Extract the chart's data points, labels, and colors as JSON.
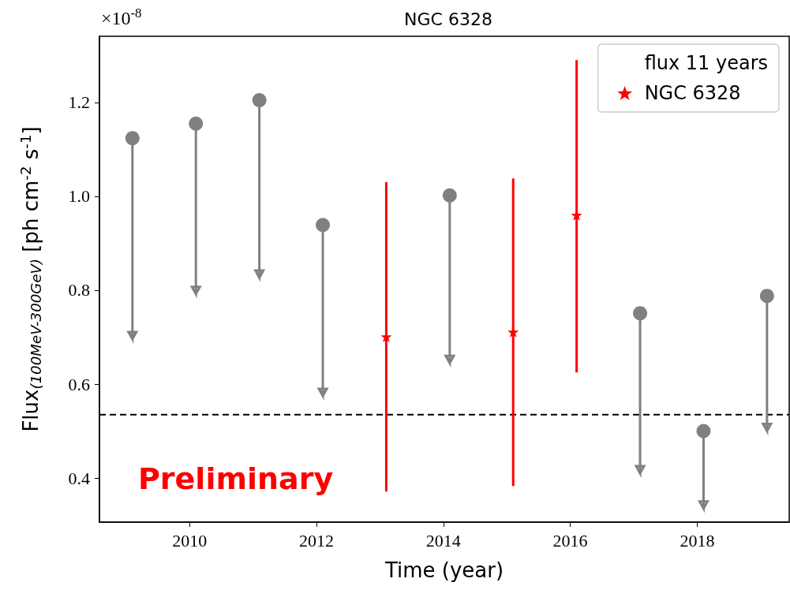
{
  "chart_data": {
    "type": "scatter",
    "title": "NGC 6328",
    "xlabel": "Time (year)",
    "ylabel": "Flux$_{(100MeV-300GeV)}$ [ph cm$^{-2}$ s$^{-1}$]",
    "annotations": [
      "×10$^{-8}$",
      "Preliminary"
    ],
    "series": [
      {
        "color": "#808080",
        "marker": "circle",
        "x": [
          2009.1,
          2010.1,
          2011.1,
          2012.1,
          2014.1,
          2017.1,
          2018.1,
          2019.1
        ],
        "values": [
          1.124,
          1.155,
          1.205,
          0.939,
          1.002,
          0.751,
          0.5,
          0.788
        ],
        "errors": [
          [
            0.696,
            1.124
          ],
          [
            0.792,
            1.155
          ],
          [
            0.827,
            1.205
          ],
          [
            0.575,
            0.939
          ],
          [
            0.645,
            1.002
          ],
          [
            0.41,
            0.751
          ],
          [
            0.335,
            0.5
          ],
          [
            0.5,
            0.788
          ]
        ]
      },
      {
        "name": "NGC 6328",
        "color": "#ff0000",
        "marker": "star",
        "x": [
          2013.1,
          2015.1,
          2016.1
        ],
        "values": [
          0.701,
          0.711,
          0.96
        ],
        "errors": [
          [
            0.371,
            1.03
          ],
          [
            0.383,
            1.038
          ],
          [
            0.625,
            1.29
          ]
        ]
      }
    ],
    "ref_lines": [
      {
        "axis": "y",
        "value": 0.535,
        "label": "flux 11 years",
        "color": "#000000",
        "line_style": "dashed"
      }
    ],
    "xlim": [
      2008.58,
      2019.45
    ],
    "xticks": [
      2010,
      2012,
      2014,
      2016,
      2018
    ],
    "ylim": [
      0.306,
      1.341
    ],
    "yticks": [
      0.4,
      0.6,
      0.8,
      {
        "value": 1.0,
        "label": "1.0"
      },
      1.2
    ],
    "legend": "top right",
    "grid": false
  }
}
